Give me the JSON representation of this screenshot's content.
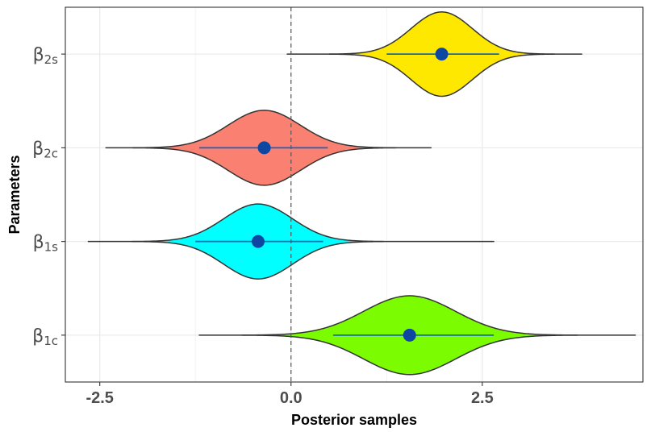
{
  "chart_data": {
    "type": "violin",
    "xlabel": "Posterior samples",
    "ylabel": "Parameters",
    "xlim": [
      -2.95,
      4.6
    ],
    "x_ticks": [
      -2.5,
      0.0,
      2.5
    ],
    "x_tick_labels": [
      "-2.5",
      "0.0",
      "2.5"
    ],
    "reference_line": {
      "x": 0.0,
      "style": "dashed"
    },
    "grid": true,
    "series": [
      {
        "name": "β1c",
        "label_main": "β",
        "label_sub": "1c",
        "color": "#7CFC00",
        "median": 1.55,
        "interval": [
          0.55,
          2.65
        ],
        "range": [
          -1.2,
          4.5
        ],
        "sd": 0.6,
        "max_half_width": 0.42
      },
      {
        "name": "β1s",
        "label_main": "β",
        "label_sub": "1s",
        "color": "#00FFFF",
        "median": -0.43,
        "interval": [
          -1.25,
          0.42
        ],
        "range": [
          -2.65,
          2.65
        ],
        "sd": 0.45,
        "max_half_width": 0.4
      },
      {
        "name": "β2c",
        "label_main": "β",
        "label_sub": "2c",
        "color": "#FA8072",
        "median": -0.35,
        "interval": [
          -1.2,
          0.48
        ],
        "range": [
          -2.42,
          1.83
        ],
        "sd": 0.47,
        "max_half_width": 0.4
      },
      {
        "name": "β2s",
        "label_main": "β",
        "label_sub": "2s",
        "color": "#FFE800",
        "median": 1.97,
        "interval": [
          1.25,
          2.72
        ],
        "range": [
          -0.05,
          3.8
        ],
        "sd": 0.4,
        "max_half_width": 0.45
      }
    ],
    "point_color": "#0D47A1",
    "interval_color": "#1565C0"
  }
}
